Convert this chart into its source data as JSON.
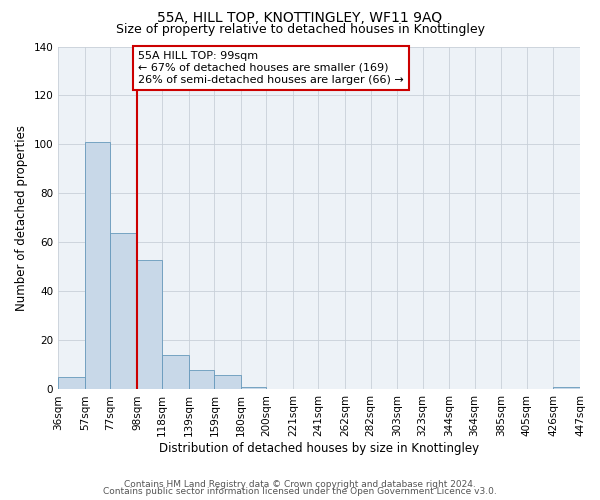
{
  "title": "55A, HILL TOP, KNOTTINGLEY, WF11 9AQ",
  "subtitle": "Size of property relative to detached houses in Knottingley",
  "xlabel": "Distribution of detached houses by size in Knottingley",
  "ylabel": "Number of detached properties",
  "footer_line1": "Contains HM Land Registry data © Crown copyright and database right 2024.",
  "footer_line2": "Contains public sector information licensed under the Open Government Licence v3.0.",
  "bin_edges": [
    36,
    57,
    77,
    98,
    118,
    139,
    159,
    180,
    200,
    221,
    241,
    262,
    282,
    303,
    323,
    344,
    364,
    385,
    405,
    426,
    447
  ],
  "bin_labels": [
    "36sqm",
    "57sqm",
    "77sqm",
    "98sqm",
    "118sqm",
    "139sqm",
    "159sqm",
    "180sqm",
    "200sqm",
    "221sqm",
    "241sqm",
    "262sqm",
    "282sqm",
    "303sqm",
    "323sqm",
    "344sqm",
    "364sqm",
    "385sqm",
    "405sqm",
    "426sqm",
    "447sqm"
  ],
  "bar_heights": [
    5,
    101,
    64,
    53,
    14,
    8,
    6,
    1,
    0,
    0,
    0,
    0,
    0,
    0,
    0,
    0,
    0,
    0,
    0,
    1
  ],
  "bar_color": "#c8d8e8",
  "bar_edge_color": "#6699bb",
  "property_line_x": 98,
  "property_line_color": "#cc0000",
  "annotation_line1": "55A HILL TOP: 99sqm",
  "annotation_line2": "← 67% of detached houses are smaller (169)",
  "annotation_line3": "26% of semi-detached houses are larger (66) →",
  "annotation_box_color": "#cc0000",
  "ylim": [
    0,
    140
  ],
  "yticks": [
    0,
    20,
    40,
    60,
    80,
    100,
    120,
    140
  ],
  "grid_color": "#c8d0d8",
  "background_color": "#edf2f7",
  "title_fontsize": 10,
  "subtitle_fontsize": 9,
  "axis_label_fontsize": 8.5,
  "tick_fontsize": 7.5,
  "annotation_fontsize": 8,
  "footer_fontsize": 6.5
}
